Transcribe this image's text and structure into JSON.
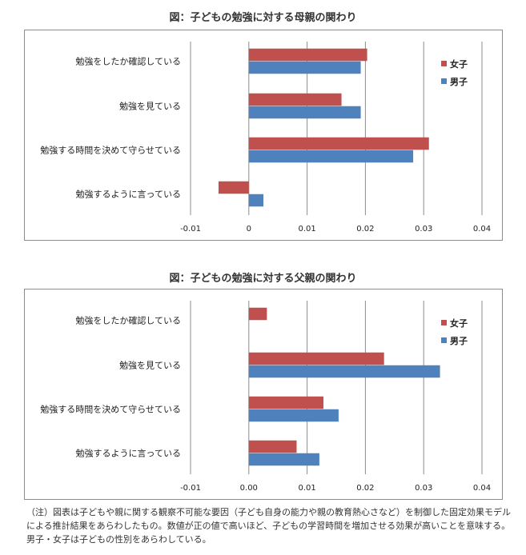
{
  "chart_data": [
    {
      "type": "bar",
      "orientation": "horizontal",
      "title": "図：子どもの勉強に対する母親の関わり",
      "categories": [
        "勉強をしたか確認している",
        "勉強を見ている",
        "勉強する時間を決めて守らせている",
        "勉強するように言っている"
      ],
      "series": [
        {
          "name": "女子",
          "color": "#c0504d",
          "values": [
            0.0203,
            0.0159,
            0.0309,
            -0.0052
          ]
        },
        {
          "name": "男子",
          "color": "#4f81bd",
          "values": [
            0.0192,
            0.0192,
            0.0282,
            0.0025
          ]
        }
      ],
      "xlim": [
        -0.01,
        0.04
      ],
      "xticks": [
        "-0.01",
        "0",
        "0.01",
        "0.02",
        "0.03",
        "0.04"
      ],
      "grid": "vertical",
      "legend": "right"
    },
    {
      "type": "bar",
      "orientation": "horizontal",
      "title": "図：子どもの勉強に対する父親の関わり",
      "categories": [
        "勉強をしたか確認している",
        "勉強を見ている",
        "勉強する時間を決めて守らせている",
        "勉強するように言っている"
      ],
      "series": [
        {
          "name": "女子",
          "color": "#c0504d",
          "values": [
            0.0031,
            0.0232,
            0.0128,
            0.0082
          ]
        },
        {
          "name": "男子",
          "color": "#4f81bd",
          "values": [
            0.0,
            0.0328,
            0.0154,
            0.0121
          ]
        }
      ],
      "xlim": [
        -0.01,
        0.04
      ],
      "xticks": [
        "-0.01",
        "0.00",
        "0.01",
        "0.02",
        "0.03",
        "0.04"
      ],
      "grid": "vertical",
      "legend": "right"
    }
  ],
  "note": {
    "line1": "（注）図表は子どもや親に関する観察不可能な要因（子ども自身の能力や親の教育熱心さなど）を制御した固定効果モデル",
    "line2": "による推計結果をあらわしたもの。数値が正の値で高いほど、子どもの学習時間を増加させる効果が高いことを意味する。",
    "line3": "男子・女子は子どもの性別をあらわしている。"
  }
}
